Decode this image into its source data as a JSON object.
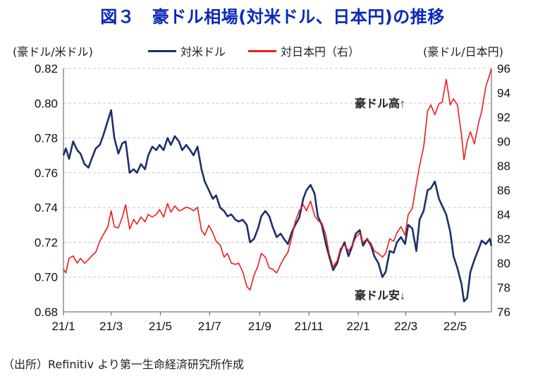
{
  "title": "図３　豪ドル相場(対米ドル、日本円)の推移",
  "left_unit": "(豪ドル/米ドル)",
  "right_unit": "(豪ドル/日本円)",
  "source": "（出所）Refinitiv より第一生命経済研究所作成",
  "annotations": {
    "high": "豪ドル高↑",
    "low": "豪ドル安↓"
  },
  "colors": {
    "usd": "#1c2f6b",
    "jpy": "#ee1c1c",
    "title": "#0a28b8"
  },
  "chart_data": {
    "type": "line",
    "x_ticks": [
      "21/1",
      "21/3",
      "21/5",
      "21/7",
      "21/9",
      "21/11",
      "22/1",
      "22/3",
      "22/5"
    ],
    "xlim": [
      "2021-01-01",
      "2022-06-15"
    ],
    "y_left": {
      "lim": [
        0.68,
        0.82
      ],
      "ticks": [
        "0.68",
        "0.70",
        "0.72",
        "0.74",
        "0.76",
        "0.78",
        "0.80",
        "0.82"
      ]
    },
    "y_right": {
      "lim": [
        76,
        96
      ],
      "ticks": [
        "76",
        "78",
        "80",
        "82",
        "84",
        "86",
        "88",
        "90",
        "92",
        "94",
        "96"
      ]
    },
    "grid": "horizontal dashed",
    "legend": "top",
    "series": [
      {
        "name": "対米ドル",
        "axis": "left",
        "color": "#1c2f6b",
        "x": [
          "2021-01-01",
          "2021-01-04",
          "2021-01-08",
          "2021-01-13",
          "2021-01-18",
          "2021-01-22",
          "2021-01-27",
          "2021-02-01",
          "2021-02-05",
          "2021-02-10",
          "2021-02-15",
          "2021-02-19",
          "2021-02-25",
          "2021-03-01",
          "2021-03-05",
          "2021-03-10",
          "2021-03-15",
          "2021-03-19",
          "2021-03-24",
          "2021-03-29",
          "2021-04-02",
          "2021-04-07",
          "2021-04-12",
          "2021-04-16",
          "2021-04-21",
          "2021-04-26",
          "2021-04-30",
          "2021-05-05",
          "2021-05-10",
          "2021-05-14",
          "2021-05-19",
          "2021-05-24",
          "2021-05-28",
          "2021-06-02",
          "2021-06-07",
          "2021-06-11",
          "2021-06-16",
          "2021-06-21",
          "2021-06-25",
          "2021-06-30",
          "2021-07-05",
          "2021-07-09",
          "2021-07-14",
          "2021-07-19",
          "2021-07-23",
          "2021-07-28",
          "2021-08-02",
          "2021-08-06",
          "2021-08-11",
          "2021-08-16",
          "2021-08-20",
          "2021-08-25",
          "2021-08-30",
          "2021-09-03",
          "2021-09-08",
          "2021-09-13",
          "2021-09-17",
          "2021-09-22",
          "2021-09-27",
          "2021-10-01",
          "2021-10-06",
          "2021-10-11",
          "2021-10-15",
          "2021-10-20",
          "2021-10-25",
          "2021-10-29",
          "2021-11-03",
          "2021-11-08",
          "2021-11-12",
          "2021-11-17",
          "2021-11-22",
          "2021-11-26",
          "2021-12-01",
          "2021-12-06",
          "2021-12-10",
          "2021-12-15",
          "2021-12-20",
          "2021-12-24",
          "2021-12-29",
          "2022-01-03",
          "2022-01-07",
          "2022-01-12",
          "2022-01-17",
          "2022-01-21",
          "2022-01-26",
          "2022-01-31",
          "2022-02-04",
          "2022-02-09",
          "2022-02-14",
          "2022-02-18",
          "2022-02-23",
          "2022-02-28",
          "2022-03-04",
          "2022-03-09",
          "2022-03-14",
          "2022-03-18",
          "2022-03-23",
          "2022-03-28",
          "2022-04-01",
          "2022-04-06",
          "2022-04-11",
          "2022-04-15",
          "2022-04-20",
          "2022-04-25",
          "2022-04-29",
          "2022-05-04",
          "2022-05-09",
          "2022-05-12",
          "2022-05-16",
          "2022-05-20",
          "2022-05-25",
          "2022-05-30",
          "2022-06-03",
          "2022-06-08",
          "2022-06-13",
          "2022-06-15"
        ],
        "values": [
          0.77,
          0.774,
          0.768,
          0.778,
          0.773,
          0.771,
          0.765,
          0.763,
          0.768,
          0.774,
          0.776,
          0.781,
          0.79,
          0.796,
          0.78,
          0.771,
          0.777,
          0.778,
          0.76,
          0.762,
          0.76,
          0.765,
          0.762,
          0.77,
          0.775,
          0.773,
          0.776,
          0.773,
          0.78,
          0.776,
          0.781,
          0.778,
          0.773,
          0.776,
          0.773,
          0.77,
          0.775,
          0.762,
          0.755,
          0.75,
          0.745,
          0.747,
          0.74,
          0.738,
          0.735,
          0.736,
          0.733,
          0.732,
          0.733,
          0.73,
          0.72,
          0.722,
          0.728,
          0.735,
          0.738,
          0.735,
          0.729,
          0.723,
          0.725,
          0.722,
          0.719,
          0.726,
          0.73,
          0.734,
          0.745,
          0.75,
          0.753,
          0.748,
          0.735,
          0.73,
          0.719,
          0.712,
          0.704,
          0.708,
          0.715,
          0.72,
          0.712,
          0.717,
          0.725,
          0.727,
          0.718,
          0.722,
          0.718,
          0.712,
          0.708,
          0.7,
          0.703,
          0.715,
          0.714,
          0.72,
          0.723,
          0.719,
          0.73,
          0.728,
          0.715,
          0.733,
          0.738,
          0.75,
          0.751,
          0.755,
          0.745,
          0.741,
          0.736,
          0.726,
          0.712,
          0.705,
          0.696,
          0.686,
          0.688,
          0.703,
          0.71,
          0.716,
          0.721,
          0.719,
          0.722,
          0.718
        ]
      },
      {
        "name": "対日本円（右）",
        "axis": "right",
        "color": "#ee1c1c",
        "x": [
          "2021-01-01",
          "2021-01-04",
          "2021-01-08",
          "2021-01-13",
          "2021-01-18",
          "2021-01-22",
          "2021-01-27",
          "2021-02-01",
          "2021-02-05",
          "2021-02-10",
          "2021-02-15",
          "2021-02-19",
          "2021-02-25",
          "2021-03-01",
          "2021-03-05",
          "2021-03-10",
          "2021-03-15",
          "2021-03-19",
          "2021-03-24",
          "2021-03-29",
          "2021-04-02",
          "2021-04-07",
          "2021-04-12",
          "2021-04-16",
          "2021-04-21",
          "2021-04-26",
          "2021-04-30",
          "2021-05-05",
          "2021-05-10",
          "2021-05-14",
          "2021-05-19",
          "2021-05-24",
          "2021-05-28",
          "2021-06-02",
          "2021-06-07",
          "2021-06-11",
          "2021-06-16",
          "2021-06-21",
          "2021-06-25",
          "2021-06-30",
          "2021-07-05",
          "2021-07-09",
          "2021-07-14",
          "2021-07-19",
          "2021-07-23",
          "2021-07-28",
          "2021-08-02",
          "2021-08-06",
          "2021-08-11",
          "2021-08-16",
          "2021-08-20",
          "2021-08-25",
          "2021-08-30",
          "2021-09-03",
          "2021-09-08",
          "2021-09-13",
          "2021-09-17",
          "2021-09-22",
          "2021-09-27",
          "2021-10-01",
          "2021-10-06",
          "2021-10-11",
          "2021-10-15",
          "2021-10-20",
          "2021-10-25",
          "2021-10-29",
          "2021-11-03",
          "2021-11-08",
          "2021-11-12",
          "2021-11-17",
          "2021-11-22",
          "2021-11-26",
          "2021-12-01",
          "2021-12-06",
          "2021-12-10",
          "2021-12-15",
          "2021-12-20",
          "2021-12-24",
          "2021-12-29",
          "2022-01-03",
          "2022-01-07",
          "2022-01-12",
          "2022-01-17",
          "2022-01-21",
          "2022-01-26",
          "2022-01-31",
          "2022-02-04",
          "2022-02-09",
          "2022-02-14",
          "2022-02-18",
          "2022-02-23",
          "2022-02-28",
          "2022-03-04",
          "2022-03-09",
          "2022-03-14",
          "2022-03-18",
          "2022-03-23",
          "2022-03-28",
          "2022-04-01",
          "2022-04-06",
          "2022-04-11",
          "2022-04-15",
          "2022-04-20",
          "2022-04-25",
          "2022-04-29",
          "2022-05-04",
          "2022-05-09",
          "2022-05-12",
          "2022-05-16",
          "2022-05-20",
          "2022-05-25",
          "2022-05-30",
          "2022-06-03",
          "2022-06-08",
          "2022-06-13",
          "2022-06-15"
        ],
        "values": [
          79.5,
          79.2,
          80.4,
          80.6,
          80.0,
          80.4,
          80.0,
          80.3,
          80.6,
          80.9,
          81.8,
          82.3,
          83.0,
          84.3,
          83.0,
          82.9,
          83.8,
          84.8,
          82.8,
          83.6,
          83.2,
          83.8,
          83.4,
          84.0,
          83.8,
          84.0,
          84.4,
          83.8,
          84.9,
          84.2,
          84.7,
          84.3,
          84.4,
          84.6,
          84.5,
          84.3,
          84.6,
          82.7,
          82.3,
          83.1,
          82.5,
          81.8,
          81.5,
          80.5,
          80.8,
          80.0,
          79.9,
          80.0,
          79.3,
          78.1,
          77.8,
          79.0,
          79.8,
          80.8,
          80.5,
          79.6,
          79.5,
          79.2,
          79.9,
          80.4,
          80.9,
          82.2,
          83.4,
          84.3,
          84.8,
          84.3,
          85.1,
          83.9,
          83.5,
          83.3,
          82.3,
          80.8,
          79.7,
          80.2,
          81.2,
          81.5,
          81.0,
          81.4,
          82.1,
          82.5,
          81.7,
          82.0,
          81.6,
          81.0,
          80.8,
          80.5,
          80.8,
          82.0,
          81.8,
          82.5,
          83.0,
          82.3,
          84.0,
          84.5,
          86.5,
          88.0,
          89.5,
          92.5,
          93.0,
          92.2,
          93.1,
          93.2,
          95.1,
          93.0,
          93.5,
          93.0,
          90.5,
          88.5,
          90.0,
          90.8,
          89.8,
          91.5,
          92.5,
          94.5,
          95.5,
          96.0
        ]
      }
    ]
  }
}
